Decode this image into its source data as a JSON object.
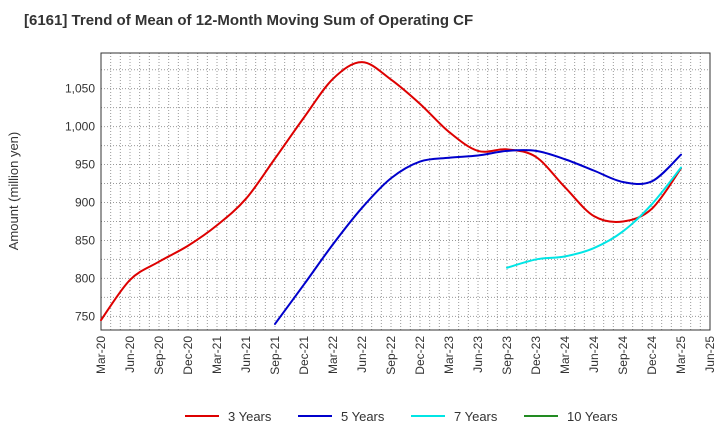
{
  "title": "[6161]  Trend of Mean of 12-Month Moving Sum of Operating CF",
  "chart_data": {
    "type": "line",
    "title": "[6161]  Trend of Mean of 12-Month Moving Sum of Operating CF",
    "xlabel": "",
    "ylabel": "Amount (million yen)",
    "x_ticks": [
      "Mar-20",
      "Jun-20",
      "Sep-20",
      "Dec-20",
      "Mar-21",
      "Jun-21",
      "Sep-21",
      "Dec-21",
      "Mar-22",
      "Jun-22",
      "Sep-22",
      "Dec-22",
      "Mar-23",
      "Jun-23",
      "Sep-23",
      "Dec-23",
      "Mar-24",
      "Jun-24",
      "Sep-24",
      "Dec-24",
      "Mar-25",
      "Jun-25"
    ],
    "y_ticks": [
      750,
      800,
      850,
      900,
      950,
      1000,
      1050
    ],
    "ylim": [
      732,
      1097
    ],
    "grid": true,
    "legend": "bottom",
    "series": [
      {
        "name": "3 Years",
        "color": "#dd0000",
        "x": [
          "Mar-20",
          "Jun-20",
          "Sep-20",
          "Dec-20",
          "Mar-21",
          "Jun-21",
          "Sep-21",
          "Dec-21",
          "Mar-22",
          "Jun-22",
          "Sep-22",
          "Dec-22",
          "Mar-23",
          "Jun-23",
          "Sep-23",
          "Dec-23",
          "Mar-24",
          "Jun-24",
          "Sep-24",
          "Dec-24",
          "Mar-25"
        ],
        "values": [
          745,
          798,
          822,
          843,
          870,
          905,
          958,
          1012,
          1063,
          1085,
          1062,
          1030,
          993,
          968,
          970,
          960,
          920,
          882,
          875,
          892,
          945
        ]
      },
      {
        "name": "5 Years",
        "color": "#0000cc",
        "x": [
          "Sep-21",
          "Dec-21",
          "Mar-22",
          "Jun-22",
          "Sep-22",
          "Dec-22",
          "Mar-23",
          "Jun-23",
          "Sep-23",
          "Dec-23",
          "Mar-24",
          "Jun-24",
          "Sep-24",
          "Dec-24",
          "Mar-25"
        ],
        "values": [
          740,
          792,
          845,
          893,
          932,
          954,
          959,
          962,
          968,
          968,
          957,
          942,
          927,
          928,
          963
        ]
      },
      {
        "name": "7 Years",
        "color": "#00e5e5",
        "x": [
          "Sep-23",
          "Dec-23",
          "Mar-24",
          "Jun-24",
          "Sep-24",
          "Dec-24",
          "Mar-25"
        ],
        "values": [
          814,
          825,
          829,
          840,
          862,
          898,
          946
        ]
      },
      {
        "name": "10 Years",
        "color": "#228B22",
        "x": [],
        "values": []
      }
    ]
  }
}
